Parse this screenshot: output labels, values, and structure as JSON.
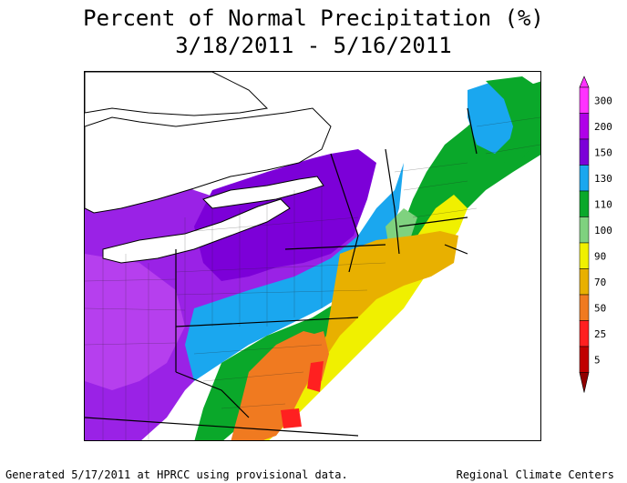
{
  "title": {
    "line1": "Percent of Normal Precipitation (%)",
    "line2": "3/18/2011 - 5/16/2011"
  },
  "legend": {
    "entries": [
      {
        "label": "300",
        "color": "#ff33ff"
      },
      {
        "label": "200",
        "color": "#b000e8"
      },
      {
        "label": "150",
        "color": "#7c00d8"
      },
      {
        "label": "130",
        "color": "#1aa7ef"
      },
      {
        "label": "110",
        "color": "#0aa82a"
      },
      {
        "label": "100",
        "color": "#7fd27f"
      },
      {
        "label": "90",
        "color": "#f0f000"
      },
      {
        "label": "70",
        "color": "#e8b000"
      },
      {
        "label": "50",
        "color": "#f07a20"
      },
      {
        "label": "25",
        "color": "#ff2020"
      },
      {
        "label": "5",
        "color": "#c00000"
      }
    ],
    "bottom_color": "#900000"
  },
  "colors": {
    "purple": "#9a22e6",
    "violet": "#7c00d8",
    "blue": "#1aa7ef",
    "green": "#0aa82a",
    "lightgreen": "#7fd27f",
    "yellow": "#f0f000",
    "gold": "#e8b000",
    "orange": "#f07a20",
    "red": "#ff2020",
    "lake": "#ffffff"
  },
  "footer": {
    "left": "Generated 5/17/2011 at HPRCC using provisional data.",
    "right": "Regional Climate Centers"
  }
}
